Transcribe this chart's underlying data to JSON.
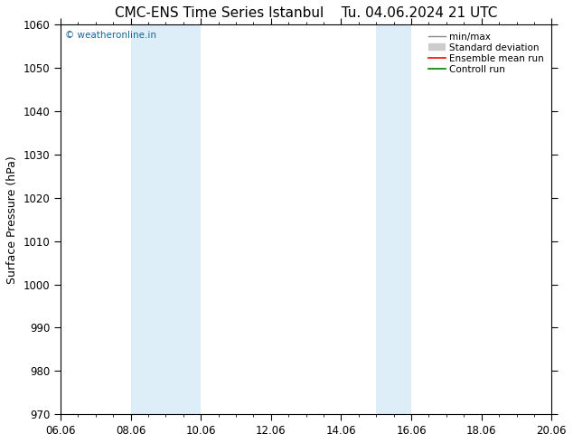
{
  "title": "CMC-ENS Time Series Istanbul",
  "title2": "Tu. 04.06.2024 21 UTC",
  "ylabel": "Surface Pressure (hPa)",
  "ylim": [
    970,
    1060
  ],
  "yticks": [
    970,
    980,
    990,
    1000,
    1010,
    1020,
    1030,
    1040,
    1050,
    1060
  ],
  "xlim_start": 0,
  "xlim_end": 14,
  "xtick_labels": [
    "06.06",
    "08.06",
    "10.06",
    "12.06",
    "14.06",
    "16.06",
    "18.06",
    "20.06"
  ],
  "xtick_positions": [
    0,
    2,
    4,
    6,
    8,
    10,
    12,
    14
  ],
  "shaded_bands": [
    {
      "x_start": 2,
      "x_end": 4
    },
    {
      "x_start": 9,
      "x_end": 10
    }
  ],
  "band_color": "#ddeef8",
  "watermark": "© weatheronline.in",
  "watermark_color": "#1a6699",
  "legend_entries": [
    "min/max",
    "Standard deviation",
    "Ensemble mean run",
    "Controll run"
  ],
  "legend_line_colors": [
    "#888888",
    "#aaaaaa",
    "#ff0000",
    "#008000"
  ],
  "background_color": "#ffffff",
  "plot_bg_color": "#ffffff",
  "title_fontsize": 11,
  "tick_fontsize": 8.5,
  "ylabel_fontsize": 9
}
